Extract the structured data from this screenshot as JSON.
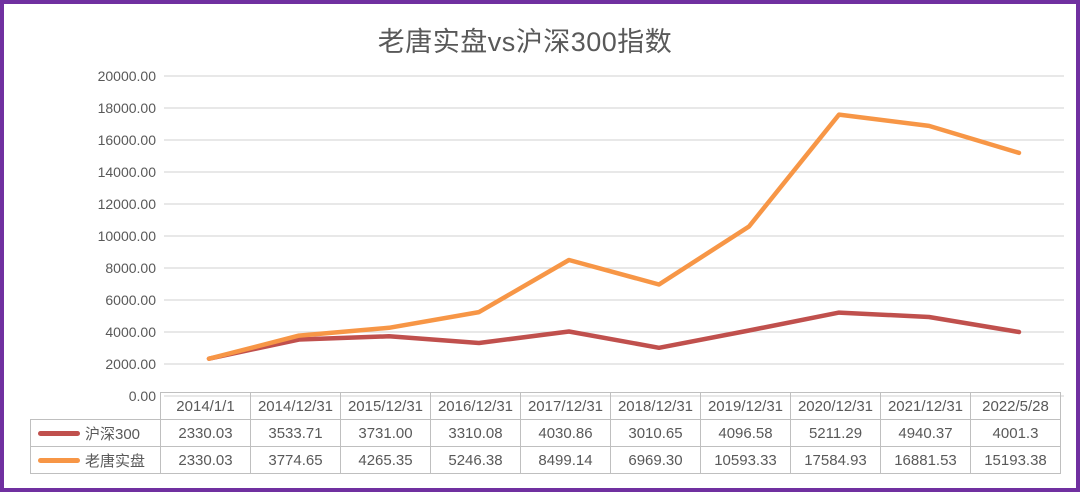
{
  "title": "老唐实盘vs沪深300指数",
  "colors": {
    "frame_border": "#7030A0",
    "gridline": "#D9D9D9",
    "table_border": "#BFBFBF",
    "text": "#595959",
    "series_hs300": "#C0504D",
    "series_laotang": "#F79646"
  },
  "chart_data": {
    "type": "line",
    "title": "老唐实盘vs沪深300指数",
    "categories": [
      "2014/1/1",
      "2014/12/31",
      "2015/12/31",
      "2016/12/31",
      "2017/12/31",
      "2018/12/31",
      "2019/12/31",
      "2020/12/31",
      "2021/12/31",
      "2022/5/28"
    ],
    "series": [
      {
        "name": "沪深300",
        "color": "#C0504D",
        "values": [
          2330.03,
          3533.71,
          3731.0,
          3310.08,
          4030.86,
          3010.65,
          4096.58,
          5211.29,
          4940.37,
          4001.3
        ],
        "display_values": [
          "2330.03",
          "3533.71",
          "3731.00",
          "3310.08",
          "4030.86",
          "3010.65",
          "4096.58",
          "5211.29",
          "4940.37",
          "4001.3"
        ]
      },
      {
        "name": "老唐实盘",
        "color": "#F79646",
        "values": [
          2330.03,
          3774.65,
          4265.35,
          5246.38,
          8499.14,
          6969.3,
          10593.33,
          17584.93,
          16881.53,
          15193.38
        ],
        "display_values": [
          "2330.03",
          "3774.65",
          "4265.35",
          "5246.38",
          "8499.14",
          "6969.30",
          "10593.33",
          "17584.93",
          "16881.53",
          "15193.38"
        ]
      }
    ],
    "ylim": [
      0,
      20000
    ],
    "ytick_step": 2000,
    "ytick_labels_top_to_bottom": [
      "20000.00",
      "18000.00",
      "16000.00",
      "14000.00",
      "12000.00",
      "10000.00",
      "8000.00",
      "6000.00",
      "4000.00",
      "2000.00",
      "0.00"
    ],
    "grid": true,
    "legend_position": "data-table-left"
  }
}
